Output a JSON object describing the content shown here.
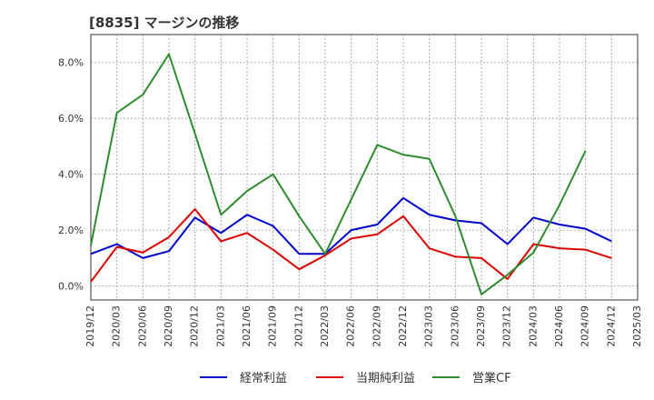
{
  "chart_data": {
    "type": "line",
    "title": "[8835]  マージンの推移",
    "x": [
      "2019/12",
      "2020/03",
      "2020/06",
      "2020/09",
      "2020/12",
      "2021/03",
      "2021/06",
      "2021/09",
      "2021/12",
      "2022/03",
      "2022/06",
      "2022/09",
      "2022/12",
      "2023/03",
      "2023/06",
      "2023/09",
      "2023/12",
      "2024/03",
      "2024/06",
      "2024/09",
      "2024/12",
      "2025/03"
    ],
    "ylim": [
      -0.5,
      9.0
    ],
    "yticks": [
      0.0,
      2.0,
      4.0,
      6.0,
      8.0
    ],
    "ytick_labels": [
      "0.0%",
      "2.0%",
      "4.0%",
      "6.0%",
      "8.0%"
    ],
    "grid": true,
    "legend_position": "bottom",
    "series": [
      {
        "name": "経常利益",
        "color": "#0000cc",
        "values": [
          1.15,
          1.5,
          1.0,
          1.25,
          2.45,
          1.9,
          2.55,
          2.15,
          1.15,
          1.15,
          2.0,
          2.2,
          3.15,
          2.55,
          2.35,
          2.25,
          1.5,
          2.45,
          2.2,
          2.05,
          1.6,
          null
        ]
      },
      {
        "name": "当期純利益",
        "color": "#dd0000",
        "values": [
          0.15,
          1.4,
          1.2,
          1.75,
          2.75,
          1.6,
          1.9,
          1.3,
          0.6,
          1.1,
          1.7,
          1.85,
          2.5,
          1.35,
          1.05,
          1.0,
          0.25,
          1.5,
          1.35,
          1.3,
          1.0,
          null
        ]
      },
      {
        "name": "営業CF",
        "color": "#2e8b2e",
        "values": [
          1.45,
          6.2,
          6.85,
          8.3,
          5.45,
          2.55,
          3.4,
          4.0,
          2.5,
          1.15,
          3.1,
          5.05,
          4.7,
          4.55,
          2.5,
          -0.3,
          0.4,
          1.2,
          2.9,
          4.85,
          null,
          null
        ]
      }
    ]
  }
}
